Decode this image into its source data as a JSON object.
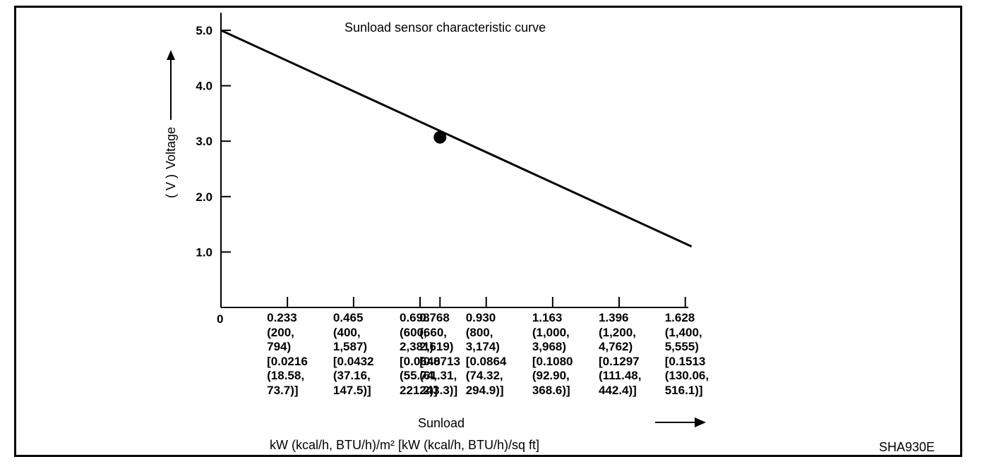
{
  "chart_data": {
    "type": "line",
    "title": "Sunload sensor characteristic curve",
    "ylabel": "Voltage",
    "ylabel_unit": "( V )",
    "xlabel": "Sunload",
    "xlabel_units": "kW (kcal/h, BTU/h)/m² [kW (kcal/h, BTU/h)/sq ft]",
    "ylim": [
      0,
      5.0
    ],
    "xlim": [
      0,
      1.628
    ],
    "y_ticks": [
      "1.0",
      "2.0",
      "3.0",
      "4.0",
      "5.0"
    ],
    "x_origin_label": "0",
    "x_ticks": [
      {
        "value": 0.233,
        "lines": [
          "0.233",
          "(200,",
          "794)",
          "[0.0216",
          "(18.58,",
          "73.7)]"
        ]
      },
      {
        "value": 0.465,
        "lines": [
          "0.465",
          "(400,",
          "1,587)",
          "[0.0432",
          "(37.16,",
          "147.5)]"
        ]
      },
      {
        "value": 0.698,
        "lines": [
          "0.698",
          "(600,",
          "2,381)",
          "[0.0648",
          "(55.74,",
          "221.2)]"
        ]
      },
      {
        "value": 0.768,
        "lines": [
          "0.768",
          "(660,",
          "2,619)",
          "[0.0713",
          "(61.31,",
          "243.3)]"
        ]
      },
      {
        "value": 0.93,
        "lines": [
          "0.930",
          "(800,",
          "3,174)",
          "[0.0864",
          "(74.32,",
          "294.9)]"
        ]
      },
      {
        "value": 1.163,
        "lines": [
          "1.163",
          "(1,000,",
          "3,968)",
          "[0.1080",
          "(92.90,",
          "368.6)]"
        ]
      },
      {
        "value": 1.396,
        "lines": [
          "1.396",
          "(1,200,",
          "4,762)",
          "[0.1297",
          "(111.48,",
          "442.4)]"
        ]
      },
      {
        "value": 1.628,
        "lines": [
          "1.628",
          "(1,400,",
          "5,555)",
          "[0.1513",
          "(130.06,",
          "516.1)]"
        ]
      }
    ],
    "series": [
      {
        "x": [
          0,
          1.65
        ],
        "y": [
          5.0,
          1.1
        ]
      }
    ],
    "highlight_point": {
      "x": 0.768,
      "y": 3.07
    },
    "grid": false
  },
  "figure_code": "SHA930E"
}
